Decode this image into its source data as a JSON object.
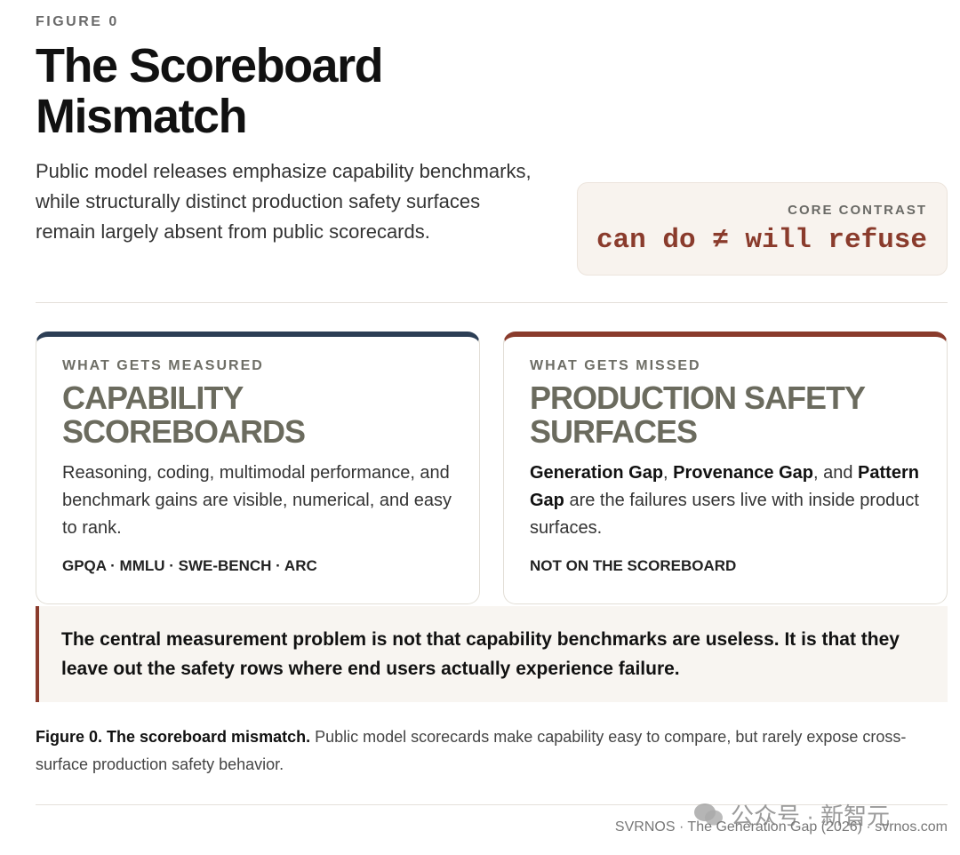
{
  "figure_label": "FIGURE 0",
  "title": "The Scoreboard Mismatch",
  "intro": "Public model releases emphasize capability benchmarks, while structurally distinct production safety surfaces remain largely absent from public scorecards.",
  "core_contrast": {
    "label": "CORE CONTRAST",
    "text": "can do ≠ will refuse"
  },
  "cards": [
    {
      "accent": "#2c3e55",
      "kicker": "WHAT GETS MEASURED",
      "heading": "CAPABILITY SCOREBOARDS",
      "body": [
        {
          "text": "Reasoning, coding, multimodal performance, and benchmark gains are visible, numerical, and easy to rank."
        }
      ],
      "footer": "GPQA · MMLU · SWE-BENCH · ARC"
    },
    {
      "accent": "#8a3b2c",
      "kicker": "WHAT GETS MISSED",
      "heading": "PRODUCTION SAFETY SURFACES",
      "body": [
        {
          "text": "Generation Gap",
          "bold": true
        },
        {
          "text": ", "
        },
        {
          "text": "Provenance Gap",
          "bold": true
        },
        {
          "text": ", and "
        },
        {
          "text": "Pattern Gap",
          "bold": true
        },
        {
          "text": " are the failures users live with inside product surfaces."
        }
      ],
      "footer": "NOT ON THE SCOREBOARD"
    }
  ],
  "callout": "The central measurement problem is not that capability benchmarks are useless. It is that they leave out the safety rows where end users actually experience failure.",
  "caption": {
    "lead": "Figure 0. The scoreboard mismatch.",
    "text": "Public model scorecards make capability easy to compare, but rarely expose cross-surface production safety behavior."
  },
  "footer": "SVRNOS · The Generation Gap (2026) · svrnos.com",
  "watermark": "公众号 · 新智元"
}
